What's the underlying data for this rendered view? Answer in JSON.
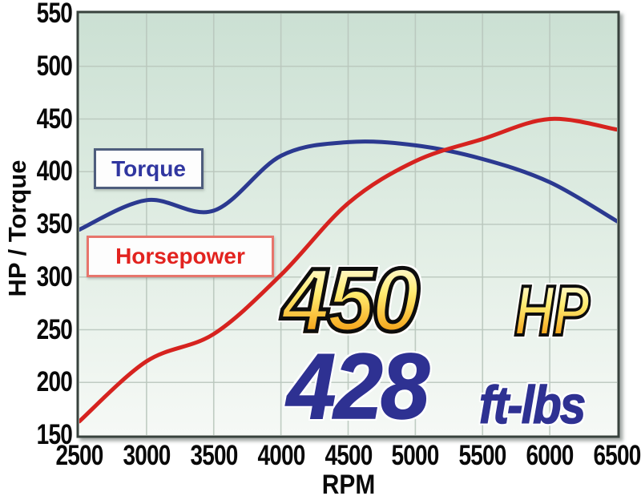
{
  "chart_data": {
    "type": "line",
    "title": "",
    "xlabel": "RPM",
    "ylabel": "HP / Torque",
    "x": [
      2500,
      3000,
      3500,
      4000,
      4500,
      5000,
      5500,
      6000,
      6500
    ],
    "xlim": [
      2500,
      6500
    ],
    "ylim": [
      150,
      550
    ],
    "x_ticks": [
      2500,
      3000,
      3500,
      4000,
      4500,
      5000,
      5500,
      6000,
      6500
    ],
    "y_ticks": [
      150,
      200,
      250,
      300,
      350,
      400,
      450,
      500,
      550
    ],
    "grid": true,
    "legend_position": "inside-left-boxes",
    "series": [
      {
        "name": "Torque",
        "color": "#2b3990",
        "values": [
          345,
          373,
          363,
          415,
          428,
          425,
          412,
          390,
          353
        ]
      },
      {
        "name": "Horsepower",
        "color": "#d6231f",
        "values": [
          163,
          220,
          246,
          302,
          370,
          410,
          431,
          450,
          440
        ]
      }
    ]
  },
  "annotations": {
    "hp_value": "450",
    "hp_unit": "HP",
    "torque_value": "428",
    "torque_unit": "ft-lbs"
  },
  "legend": {
    "torque_label": "Torque",
    "horsepower_label": "Horsepower"
  },
  "colors": {
    "plot_bg_top": "#cbe0d3",
    "plot_bg_bottom": "#f6f9f6",
    "grid": "#b9c6bd",
    "border": "#39433e",
    "legend_bg": "#fdfdfd",
    "torque_border": "#4e5d7d",
    "torque_text": "#3036a0",
    "hp_border": "#e7756c",
    "hp_text": "#e2231f",
    "gold_top": "#fffdf2",
    "gold_mid": "#ffec70",
    "gold_low": "#f6a81f",
    "gold_bottom": "#ee9212",
    "blue_text": "#2e3192"
  }
}
